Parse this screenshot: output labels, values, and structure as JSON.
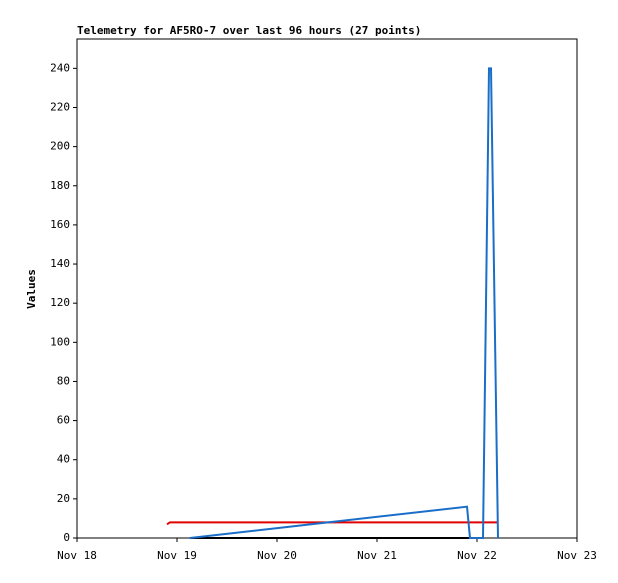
{
  "chart_data": {
    "type": "line",
    "title": "Telemetry for AF5RO-7 over last 96 hours (27 points)",
    "y_label": "Values",
    "xlim": [
      18,
      23
    ],
    "xticks": [
      {
        "value": 18,
        "label": "Nov 18"
      },
      {
        "value": 19,
        "label": "Nov 19"
      },
      {
        "value": 20,
        "label": "Nov 20"
      },
      {
        "value": 21,
        "label": "Nov 21"
      },
      {
        "value": 22,
        "label": "Nov 22"
      },
      {
        "value": 23,
        "label": "Nov 23"
      }
    ],
    "ylim": [
      0,
      255
    ],
    "yticks": [
      0,
      20,
      40,
      60,
      80,
      100,
      120,
      140,
      160,
      180,
      200,
      220,
      240
    ],
    "series": [
      {
        "color": "#000000",
        "x": [
          19.13,
          21.93
        ],
        "values": [
          0,
          0
        ]
      },
      {
        "color": "#e00000",
        "x": [
          18.9,
          18.93,
          22.2
        ],
        "values": [
          7,
          8,
          8
        ]
      },
      {
        "color": "#1a6ec8",
        "x": [
          19.13,
          21.9,
          21.93,
          22.06,
          22.12,
          22.14,
          22.21
        ],
        "values": [
          0,
          16,
          0,
          0,
          240,
          240,
          0
        ]
      }
    ]
  }
}
